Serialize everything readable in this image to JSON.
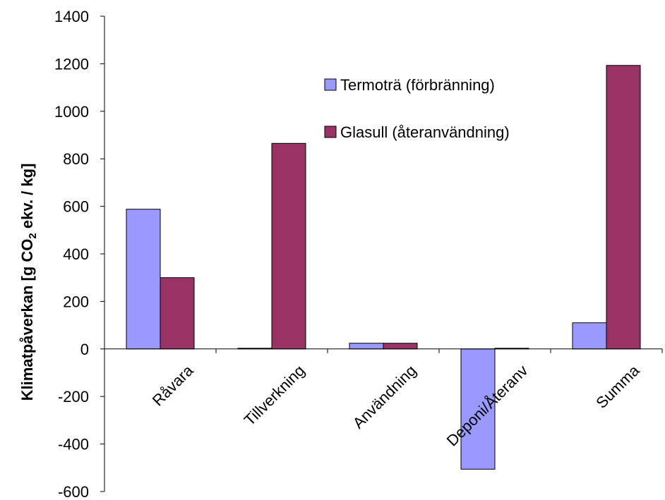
{
  "chart_data": {
    "type": "bar",
    "categories": [
      "Råvara",
      "Tillverkning",
      "Användning",
      "Deponi/Återanv",
      "Summa"
    ],
    "series": [
      {
        "name": "Termoträ (förbränning)",
        "color": "#9999ff",
        "values": [
          588,
          3,
          24,
          -506,
          110
        ]
      },
      {
        "name": "Glasull (återanvändning)",
        "color": "#993366",
        "values": [
          300,
          865,
          24,
          3,
          1193
        ]
      }
    ],
    "ylabel_parts": {
      "before": "Klimatpåverkan [g CO",
      "subscript": "2",
      "after": " ekv. / kg]"
    },
    "ylim": [
      -600,
      1400
    ],
    "yticks": [
      "-600",
      "-400",
      "-200",
      "0",
      "200",
      "400",
      "600",
      "800",
      "1000",
      "1200",
      "1400"
    ],
    "grid": false,
    "legend_position": "top-right"
  }
}
